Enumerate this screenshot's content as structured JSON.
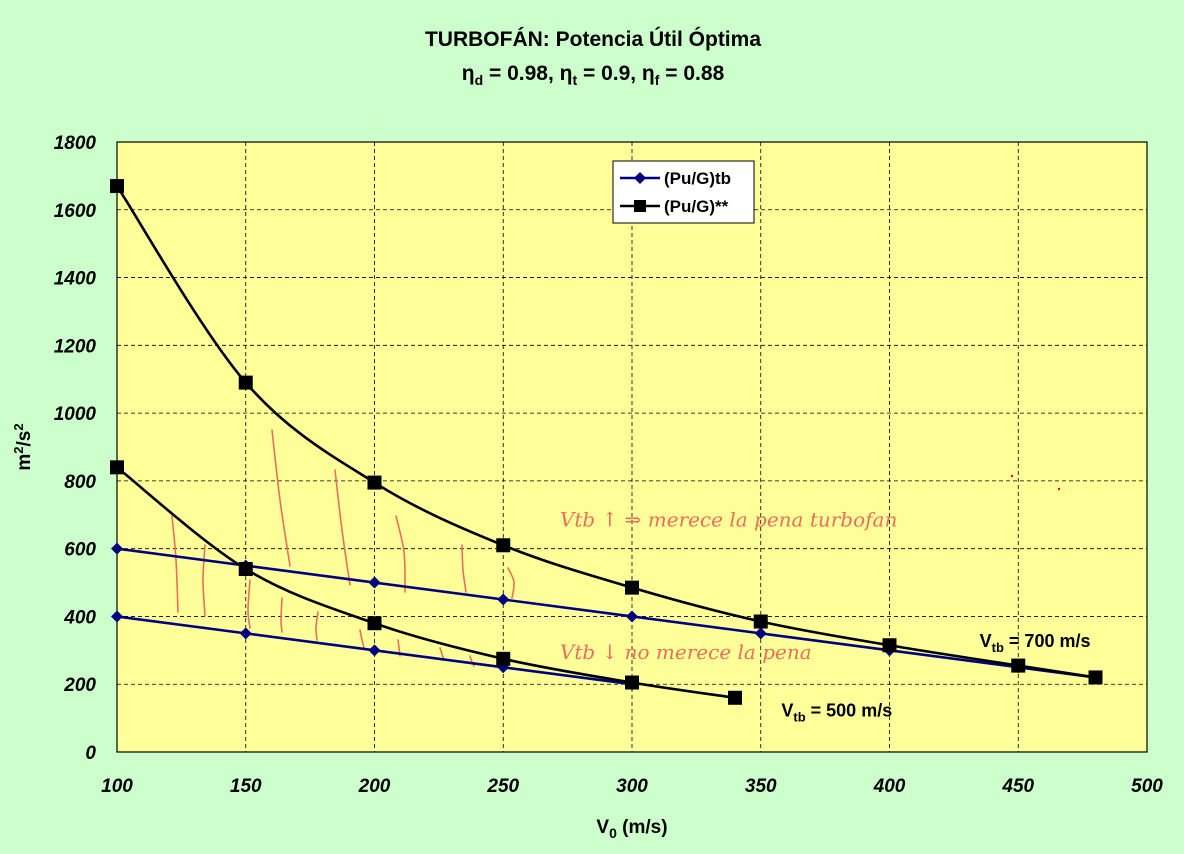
{
  "chart_data": {
    "type": "line",
    "title": "TURBOFÁN: Potencia Útil Óptima",
    "subtitle": {
      "eta_d": "0.98",
      "eta_t": "0.9",
      "eta_f": "0.88"
    },
    "xlabel": "V0 (m/s)",
    "ylabel": "m2/s2",
    "xlim": [
      100,
      500
    ],
    "ylim": [
      0,
      1800
    ],
    "x_ticks": [
      100,
      150,
      200,
      250,
      300,
      350,
      400,
      450,
      500
    ],
    "y_ticks": [
      0,
      200,
      400,
      600,
      800,
      1000,
      1200,
      1400,
      1600,
      1800
    ],
    "grid": true,
    "legend_position": "top-center",
    "legend": [
      "(Pu/G)tb",
      "(Pu/G)**"
    ],
    "series": [
      {
        "name": "(Pu/G)tb",
        "group": "Vtb = 700 m/s",
        "marker": "diamond",
        "color": "#000080",
        "x": [
          100,
          150,
          200,
          250,
          300,
          350,
          400,
          450,
          480
        ],
        "y": [
          600,
          550,
          500,
          450,
          400,
          350,
          300,
          250,
          220
        ]
      },
      {
        "name": "(Pu/G)tb",
        "group": "Vtb = 500 m/s",
        "marker": "diamond",
        "color": "#000080",
        "x": [
          100,
          150,
          200,
          250,
          300
        ],
        "y": [
          400,
          350,
          300,
          250,
          200
        ]
      },
      {
        "name": "(Pu/G)**",
        "group": "Vtb = 700 m/s",
        "marker": "square",
        "color": "#000000",
        "x": [
          100,
          150,
          200,
          250,
          300,
          350,
          400,
          450,
          480
        ],
        "y": [
          1670,
          1090,
          795,
          610,
          485,
          385,
          315,
          255,
          220
        ]
      },
      {
        "name": "(Pu/G)**",
        "group": "Vtb = 500 m/s",
        "marker": "square",
        "color": "#000000",
        "x": [
          100,
          150,
          200,
          250,
          300,
          340
        ],
        "y": [
          840,
          540,
          380,
          275,
          205,
          160
        ]
      }
    ],
    "annotations": [
      {
        "text": "V",
        "sub": "tb",
        "rest": " = 700 m/s",
        "x": 435,
        "y": 310
      },
      {
        "text": "V",
        "sub": "tb",
        "rest": " = 500 m/s",
        "x": 358,
        "y": 105
      }
    ],
    "handwriting": [
      {
        "text": "Vtb ↑ ⇒ merece la pena turbofan",
        "x": 272,
        "y": 665
      },
      {
        "text": "Vtb ↓ no merece la pena",
        "x": 272,
        "y": 275
      }
    ]
  }
}
